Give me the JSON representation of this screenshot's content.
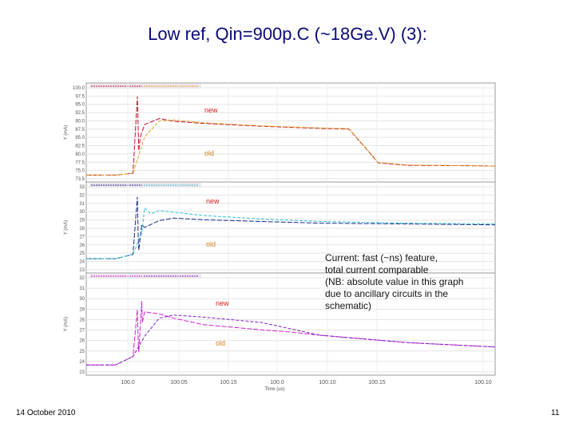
{
  "title": "Low ref, Qin=900p.C (~18Ge.V) (3):",
  "annotation": {
    "lines": [
      "Current: fast (~ns) feature,",
      "total current comparable",
      "(NB: absolute value in this graph",
      "due to ancillary circuits in the",
      "schematic)"
    ]
  },
  "footer": {
    "date": "14 October 2010",
    "page": "11"
  },
  "chart_data": [
    {
      "type": "line",
      "ylabel": "Y (mA)",
      "ylim": [
        73.5,
        100.0
      ],
      "yticks": [
        "100.0",
        "97.5",
        "95.0",
        "92.5",
        "90.0",
        "87.5",
        "85.0",
        "82.5",
        "80.0",
        "77.5",
        "75.0",
        "73.5"
      ],
      "xlim": [
        99.99,
        100.13
      ],
      "grid": true,
      "colors": {
        "new": "#c01030",
        "old": "#e0a020"
      },
      "series": [
        {
          "name": "new",
          "x": [
            99.99,
            100.0,
            100.006,
            100.0075,
            100.0078,
            100.008,
            100.0085,
            100.01,
            100.015,
            100.02,
            100.03,
            100.05,
            100.07,
            100.08,
            100.09,
            100.1,
            100.12,
            100.13
          ],
          "y": [
            75.0,
            75.0,
            75.5,
            97.5,
            88.0,
            82.0,
            86.0,
            89.5,
            91.2,
            90.4,
            89.8,
            89.0,
            88.4,
            88.2,
            78.5,
            77.8,
            77.7,
            77.6
          ]
        },
        {
          "name": "old",
          "x": [
            99.99,
            100.0,
            100.006,
            100.01,
            100.015,
            100.02,
            100.03,
            100.05,
            100.07,
            100.08,
            100.09,
            100.1,
            100.12,
            100.13
          ],
          "y": [
            75.0,
            75.0,
            75.5,
            86.0,
            90.5,
            90.8,
            90.0,
            89.1,
            88.5,
            88.3,
            78.6,
            77.9,
            77.7,
            77.6
          ]
        }
      ]
    },
    {
      "type": "line",
      "ylabel": "Y (mA)",
      "ylim": [
        23.0,
        33.0
      ],
      "yticks": [
        "33",
        "32",
        "31",
        "30",
        "29",
        "28",
        "27",
        "26",
        "25",
        "24",
        "23"
      ],
      "xlim": [
        99.99,
        100.13
      ],
      "grid": true,
      "colors": {
        "new": "#1a2a8a",
        "old": "#30c0d0"
      },
      "series": [
        {
          "name": "new",
          "x": [
            99.99,
            100.0,
            100.006,
            100.0075,
            100.0078,
            100.008,
            100.009,
            100.01,
            100.015,
            100.02,
            100.03,
            100.05,
            100.07,
            100.1,
            100.13
          ],
          "y": [
            24.5,
            24.5,
            25.0,
            31.8,
            27.0,
            25.5,
            28.5,
            28.2,
            29.0,
            29.3,
            29.1,
            28.9,
            28.7,
            28.6,
            28.5
          ]
        },
        {
          "name": "old",
          "x": [
            99.99,
            100.0,
            100.006,
            100.009,
            100.01,
            100.012,
            100.015,
            100.02,
            100.03,
            100.05,
            100.07,
            100.1,
            100.13
          ],
          "y": [
            24.5,
            24.5,
            25.0,
            27.5,
            30.5,
            29.8,
            30.2,
            30.0,
            29.6,
            29.2,
            28.9,
            28.7,
            28.6
          ]
        }
      ]
    },
    {
      "type": "line",
      "xlabel": "Time (us)",
      "ylabel": "Y (mA)",
      "ylim": [
        23.0,
        32.0
      ],
      "yticks": [
        "32",
        "31",
        "30",
        "29",
        "28",
        "27",
        "26",
        "25",
        "24",
        "23"
      ],
      "xlim": [
        99.99,
        100.13
      ],
      "xticks": [
        "100.0",
        "100.05",
        "100.15",
        "100.0",
        "100.10",
        "100.15",
        "100.10"
      ],
      "grid": true,
      "colors": {
        "new": "#d020d0",
        "old": "#8020c0"
      },
      "series": [
        {
          "name": "new",
          "x": [
            99.99,
            100.0,
            100.006,
            100.0075,
            100.0078,
            100.008,
            100.009,
            100.0092,
            100.01,
            100.015,
            100.02,
            100.03,
            100.05,
            100.06,
            100.07,
            100.1,
            100.13
          ],
          "y": [
            23.8,
            23.8,
            24.6,
            29.0,
            26.0,
            25.0,
            29.8,
            27.8,
            28.8,
            28.6,
            28.2,
            27.6,
            27.1,
            26.9,
            26.6,
            25.9,
            25.5
          ]
        },
        {
          "name": "old",
          "x": [
            99.99,
            100.0,
            100.006,
            100.01,
            100.015,
            100.02,
            100.03,
            100.05,
            100.07,
            100.1,
            100.13
          ],
          "y": [
            23.8,
            23.8,
            24.6,
            26.5,
            28.2,
            28.5,
            28.3,
            27.8,
            26.6,
            25.9,
            25.5
          ]
        }
      ]
    }
  ]
}
